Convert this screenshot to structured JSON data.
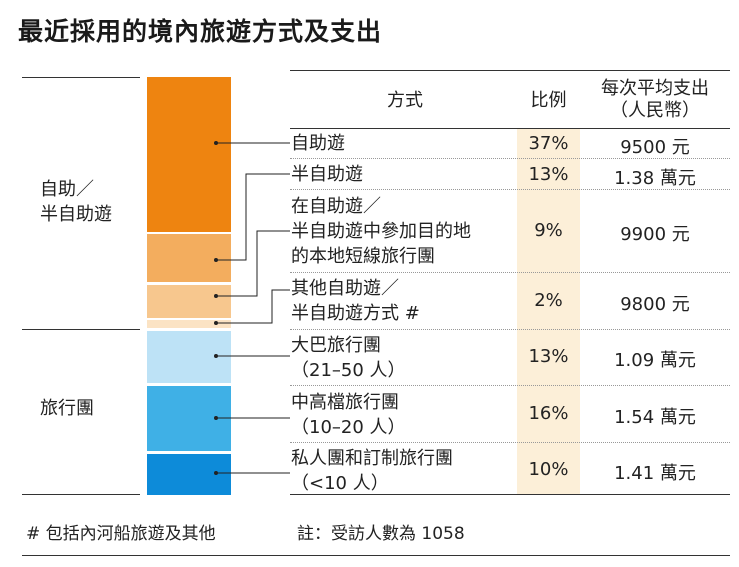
{
  "title": "最近採用的境內旅遊方式及支出",
  "headers": {
    "method": "方式",
    "ratio": "比例",
    "cost_line1": "每次平均支出",
    "cost_line2": "（人民幣）"
  },
  "groups": [
    {
      "label_line1": "自助／",
      "label_line2": "半自助遊"
    },
    {
      "label_line1": "旅行團"
    }
  ],
  "rows": [
    {
      "lines": [
        "自助遊"
      ],
      "pct": "37%",
      "cost": "9500 元"
    },
    {
      "lines": [
        "半自助遊"
      ],
      "pct": "13%",
      "cost": "1.38 萬元"
    },
    {
      "lines": [
        "在自助遊／",
        "半自助遊中參加目的地",
        "的本地短線旅行團"
      ],
      "pct": "9%",
      "cost": "9900 元"
    },
    {
      "lines": [
        "其他自助遊／",
        "半自助遊方式 #"
      ],
      "pct": "2%",
      "cost": "9800 元"
    },
    {
      "lines": [
        "大巴旅行團",
        "（21–50 人）"
      ],
      "pct": "13%",
      "cost": "1.09 萬元"
    },
    {
      "lines": [
        "中高檔旅行團",
        "（10–20 人）"
      ],
      "pct": "16%",
      "cost": "1.54 萬元"
    },
    {
      "lines": [
        "私人團和訂制旅行團",
        "（<10 人）"
      ],
      "pct": "10%",
      "cost": "1.41 萬元"
    }
  ],
  "footnotes": {
    "left": "# 包括內河船旅遊及其他",
    "right": "註：受訪人數為 1058"
  },
  "colors": {
    "self_guided": "#ee8410",
    "semi_self_guided": "#f3ad5e",
    "local_short_tour": "#f3ad5e",
    "other_self": "#f7c78e",
    "bus_tour": "#bde2f6",
    "mid_high_tour": "#3fb0e6",
    "private_tour": "#0d8bd9",
    "pct_column_bg": "#fcefd8"
  },
  "chart_data": {
    "type": "bar",
    "title": "最近採用的境內旅遊方式及支出",
    "categories": [
      "自助遊",
      "半自助遊",
      "在自助遊／半自助遊中參加目的地的本地短線旅行團",
      "其他自助遊／半自助遊方式 #",
      "大巴旅行團（21–50 人）",
      "中高檔旅行團（10–20 人）",
      "私人團和訂制旅行團（<10 人）"
    ],
    "groups": [
      "自助／半自助遊",
      "自助／半自助遊",
      "自助／半自助遊",
      "自助／半自助遊",
      "旅行團",
      "旅行團",
      "旅行團"
    ],
    "series": [
      {
        "name": "比例",
        "values": [
          37,
          13,
          9,
          2,
          13,
          16,
          10
        ],
        "unit": "%"
      },
      {
        "name": "每次平均支出（人民幣）",
        "values": [
          9500,
          13800,
          9900,
          9800,
          10900,
          15400,
          14100
        ],
        "unit": "元"
      }
    ],
    "stacked": true
  }
}
